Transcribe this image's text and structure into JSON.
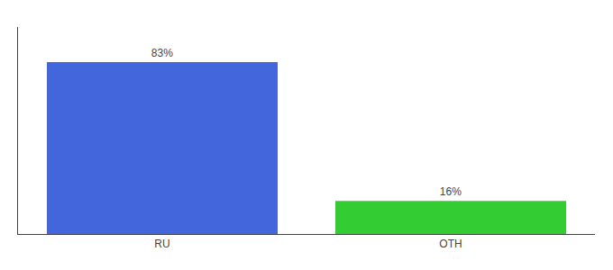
{
  "chart_data": {
    "type": "bar",
    "categories": [
      "RU",
      "OTH"
    ],
    "values": [
      83,
      16
    ],
    "value_labels": [
      "83%",
      "16%"
    ],
    "data_labels": true,
    "colors": [
      "#4466dd",
      "#33cc33"
    ],
    "ylim": [
      0,
      100
    ],
    "grid": false,
    "tick_labels": "x"
  }
}
